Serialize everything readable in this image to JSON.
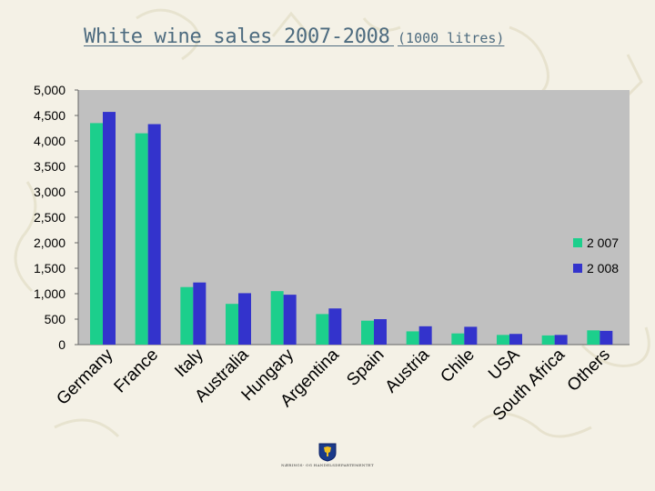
{
  "slide": {
    "title": "White wine sales 2007-2008",
    "unit": "(1000 litres)",
    "footer_text": "NÆRINGS- OG HANDELSDEPARTEMENTET"
  },
  "colors": {
    "background": "#f4f1e6",
    "plot_area": "#c0c0c0",
    "title": "#4d6b7f",
    "series_2007": "#1ccf8c",
    "series_2008": "#3333cc"
  },
  "chart_data": {
    "type": "bar",
    "title": "White wine sales 2007-2008",
    "categories": [
      "Germany",
      "France",
      "Italy",
      "Australia",
      "Hungary",
      "Argentina",
      "Spain",
      "Austria",
      "Chile",
      "USA",
      "South Africa",
      "Others"
    ],
    "series": [
      {
        "name": "2 007",
        "color": "#1ccf8c",
        "values": [
          4350,
          4150,
          1130,
          800,
          1050,
          600,
          470,
          260,
          220,
          190,
          180,
          280
        ]
      },
      {
        "name": "2 008",
        "color": "#3333cc",
        "values": [
          4570,
          4330,
          1220,
          1010,
          980,
          710,
          500,
          360,
          350,
          210,
          190,
          270
        ]
      }
    ],
    "y_ticks": [
      "0",
      "500",
      "1,000",
      "1,500",
      "2,000",
      "2,500",
      "3,000",
      "3,500",
      "4,000",
      "4,500",
      "5,000"
    ],
    "ylim": [
      0,
      5000
    ],
    "xlabel": "",
    "ylabel": "",
    "legend_position": "right",
    "grid": false
  }
}
